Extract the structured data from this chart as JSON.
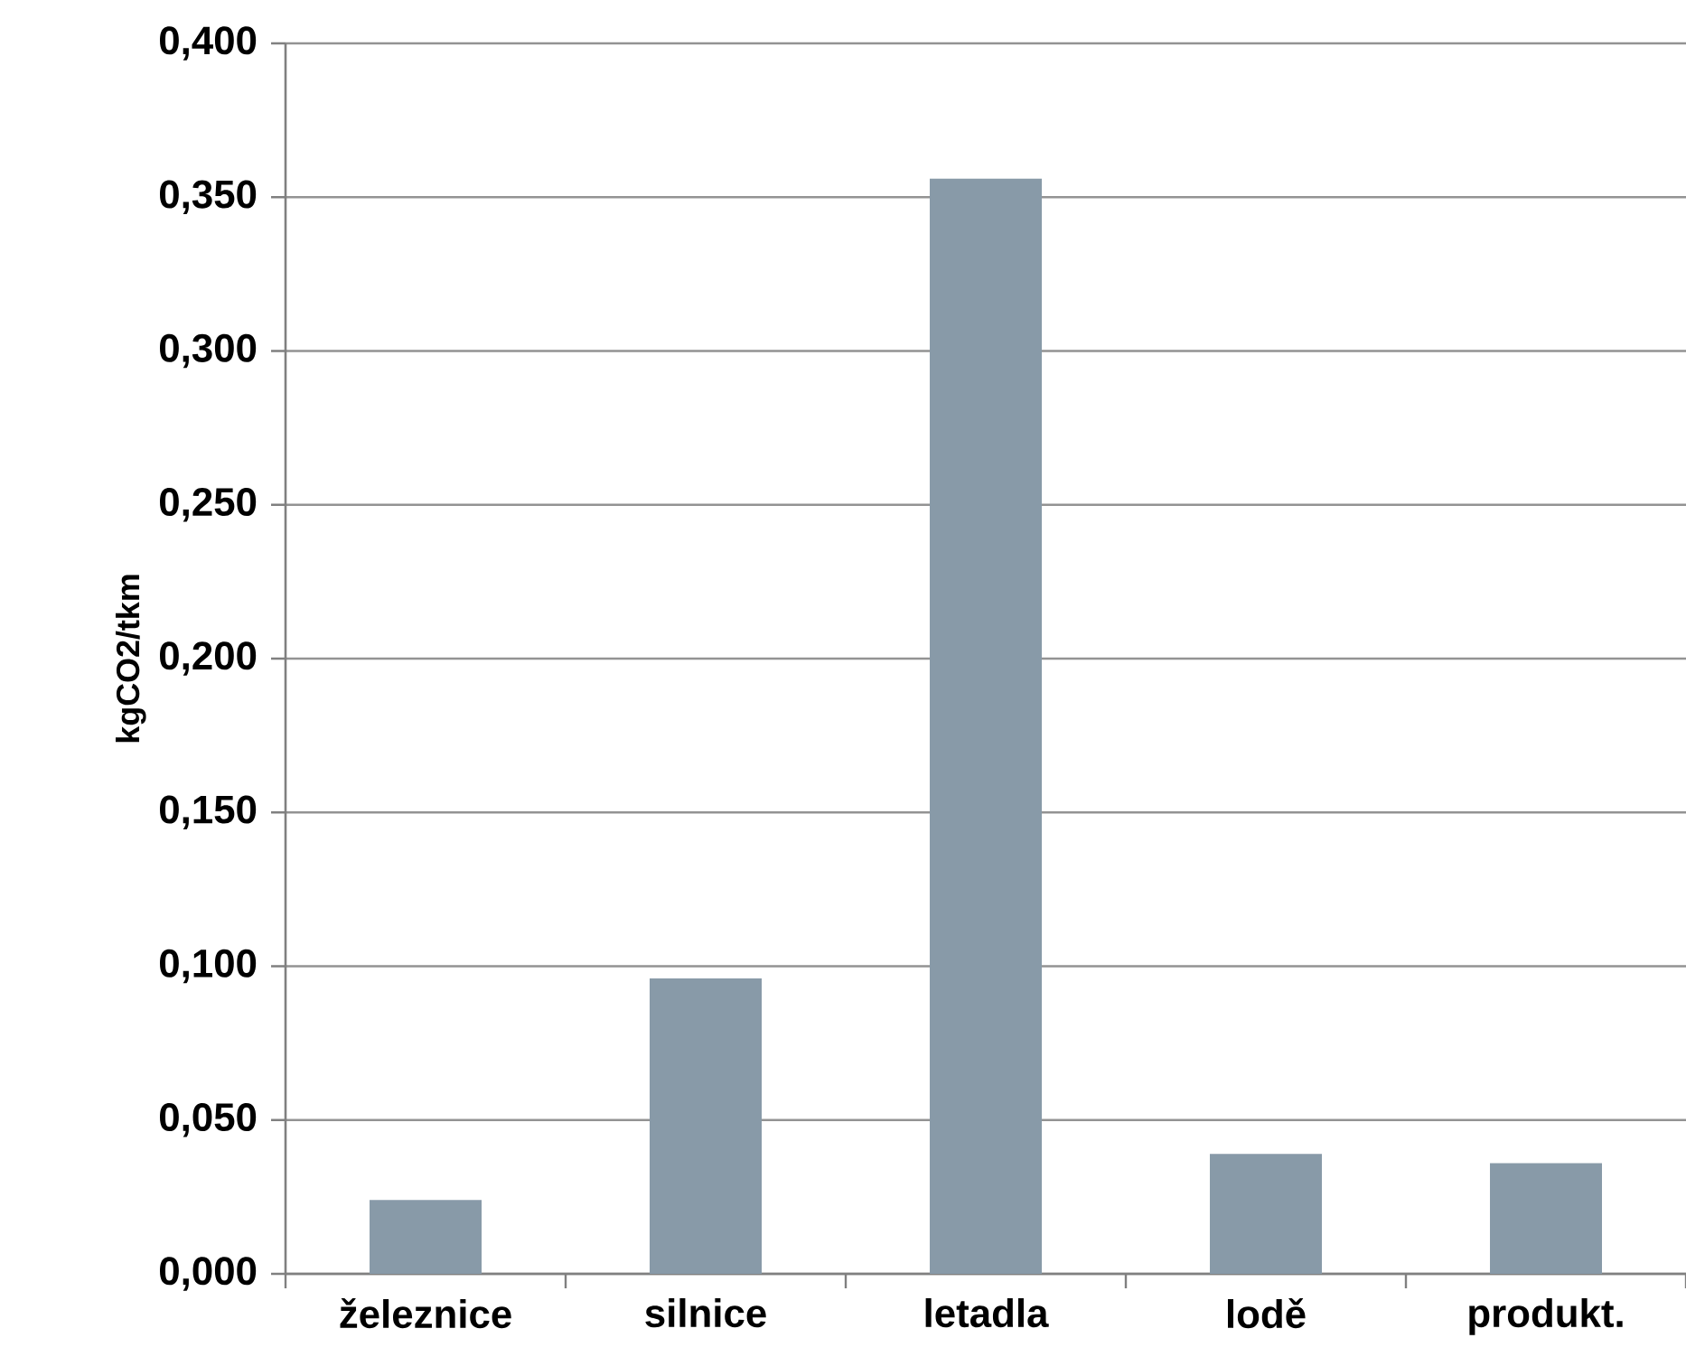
{
  "chart_data": {
    "type": "bar",
    "ylabel": "kgCO2/tkm",
    "categories": [
      "železnice",
      "silnice",
      "letadla",
      "lodě",
      "produkt."
    ],
    "values": [
      0.024,
      0.096,
      0.356,
      0.039,
      0.036
    ],
    "color": "#889aa8",
    "ylim": [
      0,
      0.4
    ],
    "yticks": [
      {
        "value": 0,
        "label": "0,000"
      },
      {
        "value": 0.05,
        "label": "0,050"
      },
      {
        "value": 0.1,
        "label": "0,100"
      },
      {
        "value": 0.15,
        "label": "0,150"
      },
      {
        "value": 0.2,
        "label": "0,200"
      },
      {
        "value": 0.25,
        "label": "0,250"
      },
      {
        "value": 0.3,
        "label": "0,300"
      },
      {
        "value": 0.35,
        "label": "0,350"
      },
      {
        "value": 0.4,
        "label": "0,400"
      }
    ],
    "grid": "y"
  }
}
